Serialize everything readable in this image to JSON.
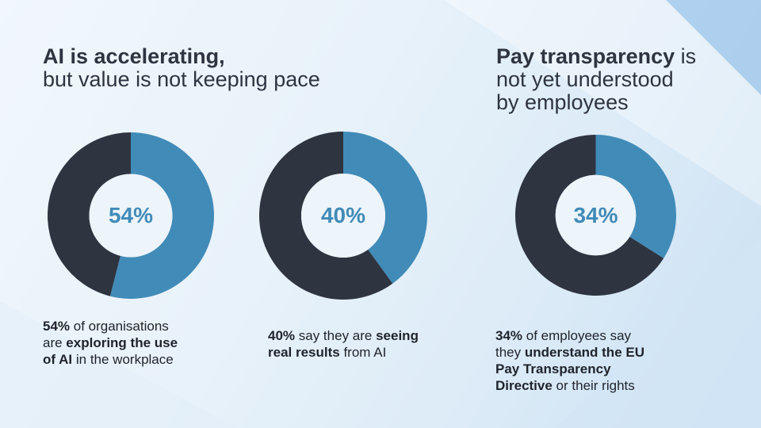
{
  "colors": {
    "accent": "#418bb8",
    "dark": "#2e3440",
    "hole": "#edf4fa"
  },
  "left_heading": {
    "bold": "AI is accelerating,",
    "light": "but value is not keeping pace"
  },
  "right_heading": {
    "bold": "Pay transparency",
    "light_inline": " is",
    "line2": "not yet understood",
    "line3": "by employees"
  },
  "chart_data": [
    {
      "type": "pie",
      "title": "",
      "center_label": "54%",
      "slices": [
        {
          "label": "",
          "value": 54,
          "color": "#418bb8"
        },
        {
          "label": "",
          "value": 46,
          "color": "#2e3440"
        }
      ],
      "caption": {
        "pct": "54%",
        "t1": " of organisations",
        "t2": "are ",
        "b2": "exploring the use",
        "b3": "of AI",
        "t3": " in the workplace"
      }
    },
    {
      "type": "pie",
      "title": "",
      "center_label": "40%",
      "slices": [
        {
          "label": "",
          "value": 40,
          "color": "#418bb8"
        },
        {
          "label": "",
          "value": 60,
          "color": "#2e3440"
        }
      ],
      "caption": {
        "pct": "40%",
        "t1": " say they are ",
        "b1": "seeing",
        "b2": "real results",
        "t2": " from AI"
      }
    },
    {
      "type": "pie",
      "title": "",
      "center_label": "34%",
      "slices": [
        {
          "label": "",
          "value": 34,
          "color": "#418bb8"
        },
        {
          "label": "",
          "value": 66,
          "color": "#2e3440"
        }
      ],
      "caption": {
        "pct": "34%",
        "t1": " of employees say",
        "t2": "they ",
        "b2": "understand the EU",
        "b3": "Pay Transparency",
        "b4": "Directive",
        "t4": " or their rights"
      }
    }
  ]
}
